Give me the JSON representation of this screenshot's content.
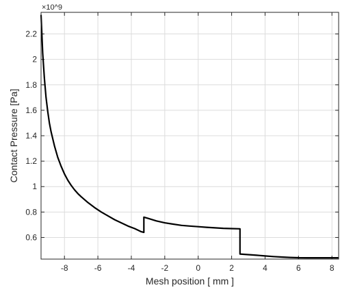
{
  "chart_data": {
    "type": "line",
    "title": "",
    "xlabel": "Mesh position [ mm ]",
    "ylabel": "Contact Pressure [Pa]",
    "y_exponent_label": "×10^9",
    "xlim": [
      -9.4,
      8.4
    ],
    "ylim": [
      0.43,
      2.37
    ],
    "x_ticks": [
      -8,
      -6,
      -4,
      -2,
      0,
      2,
      4,
      6,
      8
    ],
    "y_ticks": [
      0.6,
      0.8,
      1.0,
      1.2,
      1.4,
      1.6,
      1.8,
      2.0,
      2.2
    ],
    "x_tick_labels": [
      "-8",
      "-6",
      "-4",
      "-2",
      "0",
      "2",
      "4",
      "6",
      "8"
    ],
    "y_tick_labels": [
      "0.6",
      "0.8",
      "1",
      "1.2",
      "1.4",
      "1.6",
      "1.8",
      "2",
      "2.2"
    ],
    "grid": true,
    "series": [
      {
        "color": "#000000",
        "x": [
          -9.4,
          -9.3,
          -9.2,
          -9.1,
          -9.0,
          -8.9,
          -8.8,
          -8.6,
          -8.4,
          -8.2,
          -8.0,
          -7.8,
          -7.6,
          -7.4,
          -7.2,
          -7.0,
          -6.6,
          -6.2,
          -5.8,
          -5.4,
          -5.0,
          -4.6,
          -4.2,
          -3.8,
          -3.4,
          -3.25,
          -3.25,
          -3.0,
          -2.5,
          -2.0,
          -1.5,
          -1.0,
          -0.5,
          0.0,
          0.5,
          1.0,
          1.5,
          2.0,
          2.5,
          2.5,
          3.0,
          3.5,
          4.0,
          4.5,
          5.0,
          5.5,
          6.0,
          6.5,
          7.0,
          7.5,
          8.0,
          8.4
        ],
        "y": [
          2.35,
          2.05,
          1.85,
          1.7,
          1.59,
          1.5,
          1.43,
          1.32,
          1.23,
          1.16,
          1.1,
          1.05,
          1.01,
          0.975,
          0.945,
          0.92,
          0.875,
          0.835,
          0.8,
          0.77,
          0.74,
          0.715,
          0.69,
          0.67,
          0.645,
          0.64,
          0.76,
          0.75,
          0.73,
          0.715,
          0.705,
          0.695,
          0.69,
          0.685,
          0.68,
          0.676,
          0.672,
          0.67,
          0.668,
          0.47,
          0.465,
          0.46,
          0.455,
          0.45,
          0.446,
          0.443,
          0.441,
          0.44,
          0.44,
          0.44,
          0.44,
          0.44
        ]
      }
    ]
  }
}
